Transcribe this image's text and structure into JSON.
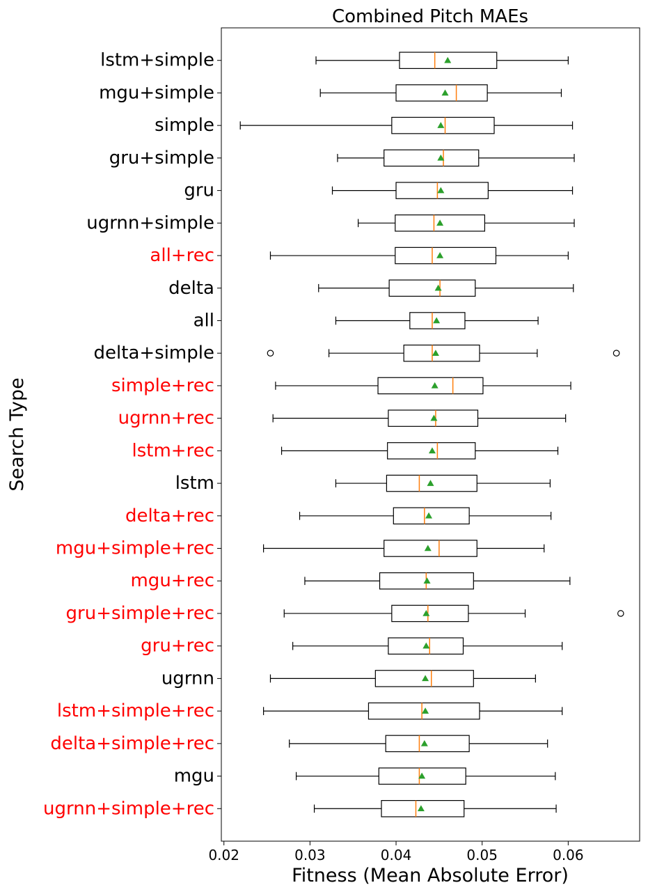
{
  "chart_data": {
    "type": "boxplot",
    "orientation": "horizontal",
    "title": "Combined Pitch MAEs",
    "xlabel": "Fitness (Mean Absolute Error)",
    "ylabel": "Search Type",
    "xlim": [
      0.0197,
      0.0683
    ],
    "xticks": [
      0.02,
      0.03,
      0.04,
      0.05,
      0.06
    ],
    "xtick_labels": [
      "0.02",
      "0.03",
      "0.04",
      "0.05",
      "0.06"
    ],
    "grid": false,
    "colors": {
      "default_label": "#000000",
      "highlight_label": "#ff0000",
      "median": "#ff7f0e",
      "mean": "#2ca02c",
      "box": "#000000"
    },
    "series": [
      {
        "name": "lstm+simple",
        "highlight": false,
        "whislo": 0.0307,
        "q1": 0.0404,
        "med": 0.0445,
        "q3": 0.0517,
        "whishi": 0.06,
        "mean": 0.046,
        "fliers": []
      },
      {
        "name": "mgu+simple",
        "highlight": false,
        "whislo": 0.0312,
        "q1": 0.04,
        "med": 0.047,
        "q3": 0.0506,
        "whishi": 0.0592,
        "mean": 0.0457,
        "fliers": []
      },
      {
        "name": "simple",
        "highlight": false,
        "whislo": 0.0219,
        "q1": 0.0395,
        "med": 0.0457,
        "q3": 0.0514,
        "whishi": 0.0605,
        "mean": 0.0452,
        "fliers": []
      },
      {
        "name": "gru+simple",
        "highlight": false,
        "whislo": 0.0332,
        "q1": 0.0386,
        "med": 0.0455,
        "q3": 0.0496,
        "whishi": 0.0607,
        "mean": 0.0452,
        "fliers": []
      },
      {
        "name": "gru",
        "highlight": false,
        "whislo": 0.0326,
        "q1": 0.04,
        "med": 0.0448,
        "q3": 0.0507,
        "whishi": 0.0605,
        "mean": 0.0452,
        "fliers": []
      },
      {
        "name": "ugrnn+simple",
        "highlight": false,
        "whislo": 0.0356,
        "q1": 0.0399,
        "med": 0.0444,
        "q3": 0.0503,
        "whishi": 0.0607,
        "mean": 0.0451,
        "fliers": []
      },
      {
        "name": "all+rec",
        "highlight": true,
        "whislo": 0.0254,
        "q1": 0.0399,
        "med": 0.0442,
        "q3": 0.0516,
        "whishi": 0.06,
        "mean": 0.0451,
        "fliers": []
      },
      {
        "name": "delta",
        "highlight": false,
        "whislo": 0.031,
        "q1": 0.0392,
        "med": 0.0451,
        "q3": 0.0492,
        "whishi": 0.0606,
        "mean": 0.0449,
        "fliers": []
      },
      {
        "name": "all",
        "highlight": false,
        "whislo": 0.033,
        "q1": 0.0416,
        "med": 0.0442,
        "q3": 0.048,
        "whishi": 0.0565,
        "mean": 0.0447,
        "fliers": []
      },
      {
        "name": "delta+simple",
        "highlight": false,
        "whislo": 0.0322,
        "q1": 0.0409,
        "med": 0.0442,
        "q3": 0.0497,
        "whishi": 0.0564,
        "mean": 0.0446,
        "fliers": [
          0.0254,
          0.0656
        ]
      },
      {
        "name": "simple+rec",
        "highlight": true,
        "whislo": 0.026,
        "q1": 0.0379,
        "med": 0.0466,
        "q3": 0.0501,
        "whishi": 0.0603,
        "mean": 0.0445,
        "fliers": []
      },
      {
        "name": "ugrnn+rec",
        "highlight": true,
        "whislo": 0.0257,
        "q1": 0.0391,
        "med": 0.0446,
        "q3": 0.0495,
        "whishi": 0.0597,
        "mean": 0.0444,
        "fliers": []
      },
      {
        "name": "lstm+rec",
        "highlight": true,
        "whislo": 0.0267,
        "q1": 0.039,
        "med": 0.0448,
        "q3": 0.0492,
        "whishi": 0.0588,
        "mean": 0.0442,
        "fliers": []
      },
      {
        "name": "lstm",
        "highlight": false,
        "whislo": 0.033,
        "q1": 0.0389,
        "med": 0.0427,
        "q3": 0.0494,
        "whishi": 0.0579,
        "mean": 0.044,
        "fliers": []
      },
      {
        "name": "delta+rec",
        "highlight": true,
        "whislo": 0.0288,
        "q1": 0.0397,
        "med": 0.0433,
        "q3": 0.0485,
        "whishi": 0.058,
        "mean": 0.0438,
        "fliers": []
      },
      {
        "name": "mgu+simple+rec",
        "highlight": true,
        "whislo": 0.0246,
        "q1": 0.0386,
        "med": 0.045,
        "q3": 0.0494,
        "whishi": 0.0572,
        "mean": 0.0437,
        "fliers": []
      },
      {
        "name": "mgu+rec",
        "highlight": true,
        "whislo": 0.0294,
        "q1": 0.0381,
        "med": 0.0435,
        "q3": 0.049,
        "whishi": 0.0602,
        "mean": 0.0436,
        "fliers": []
      },
      {
        "name": "gru+simple+rec",
        "highlight": true,
        "whislo": 0.027,
        "q1": 0.0395,
        "med": 0.0437,
        "q3": 0.0484,
        "whishi": 0.055,
        "mean": 0.0435,
        "fliers": [
          0.0661
        ]
      },
      {
        "name": "gru+rec",
        "highlight": true,
        "whislo": 0.028,
        "q1": 0.0391,
        "med": 0.0439,
        "q3": 0.0478,
        "whishi": 0.0593,
        "mean": 0.0435,
        "fliers": []
      },
      {
        "name": "ugrnn",
        "highlight": false,
        "whislo": 0.0254,
        "q1": 0.0376,
        "med": 0.0441,
        "q3": 0.049,
        "whishi": 0.0562,
        "mean": 0.0434,
        "fliers": []
      },
      {
        "name": "lstm+simple+rec",
        "highlight": true,
        "whislo": 0.0246,
        "q1": 0.0368,
        "med": 0.043,
        "q3": 0.0497,
        "whishi": 0.0593,
        "mean": 0.0434,
        "fliers": []
      },
      {
        "name": "delta+simple+rec",
        "highlight": true,
        "whislo": 0.0276,
        "q1": 0.0388,
        "med": 0.0427,
        "q3": 0.0485,
        "whishi": 0.0576,
        "mean": 0.0433,
        "fliers": []
      },
      {
        "name": "mgu",
        "highlight": false,
        "whislo": 0.0284,
        "q1": 0.038,
        "med": 0.0427,
        "q3": 0.0481,
        "whishi": 0.0585,
        "mean": 0.043,
        "fliers": []
      },
      {
        "name": "ugrnn+simple+rec",
        "highlight": true,
        "whislo": 0.0305,
        "q1": 0.0383,
        "med": 0.0423,
        "q3": 0.0479,
        "whishi": 0.0586,
        "mean": 0.0429,
        "fliers": []
      }
    ]
  }
}
